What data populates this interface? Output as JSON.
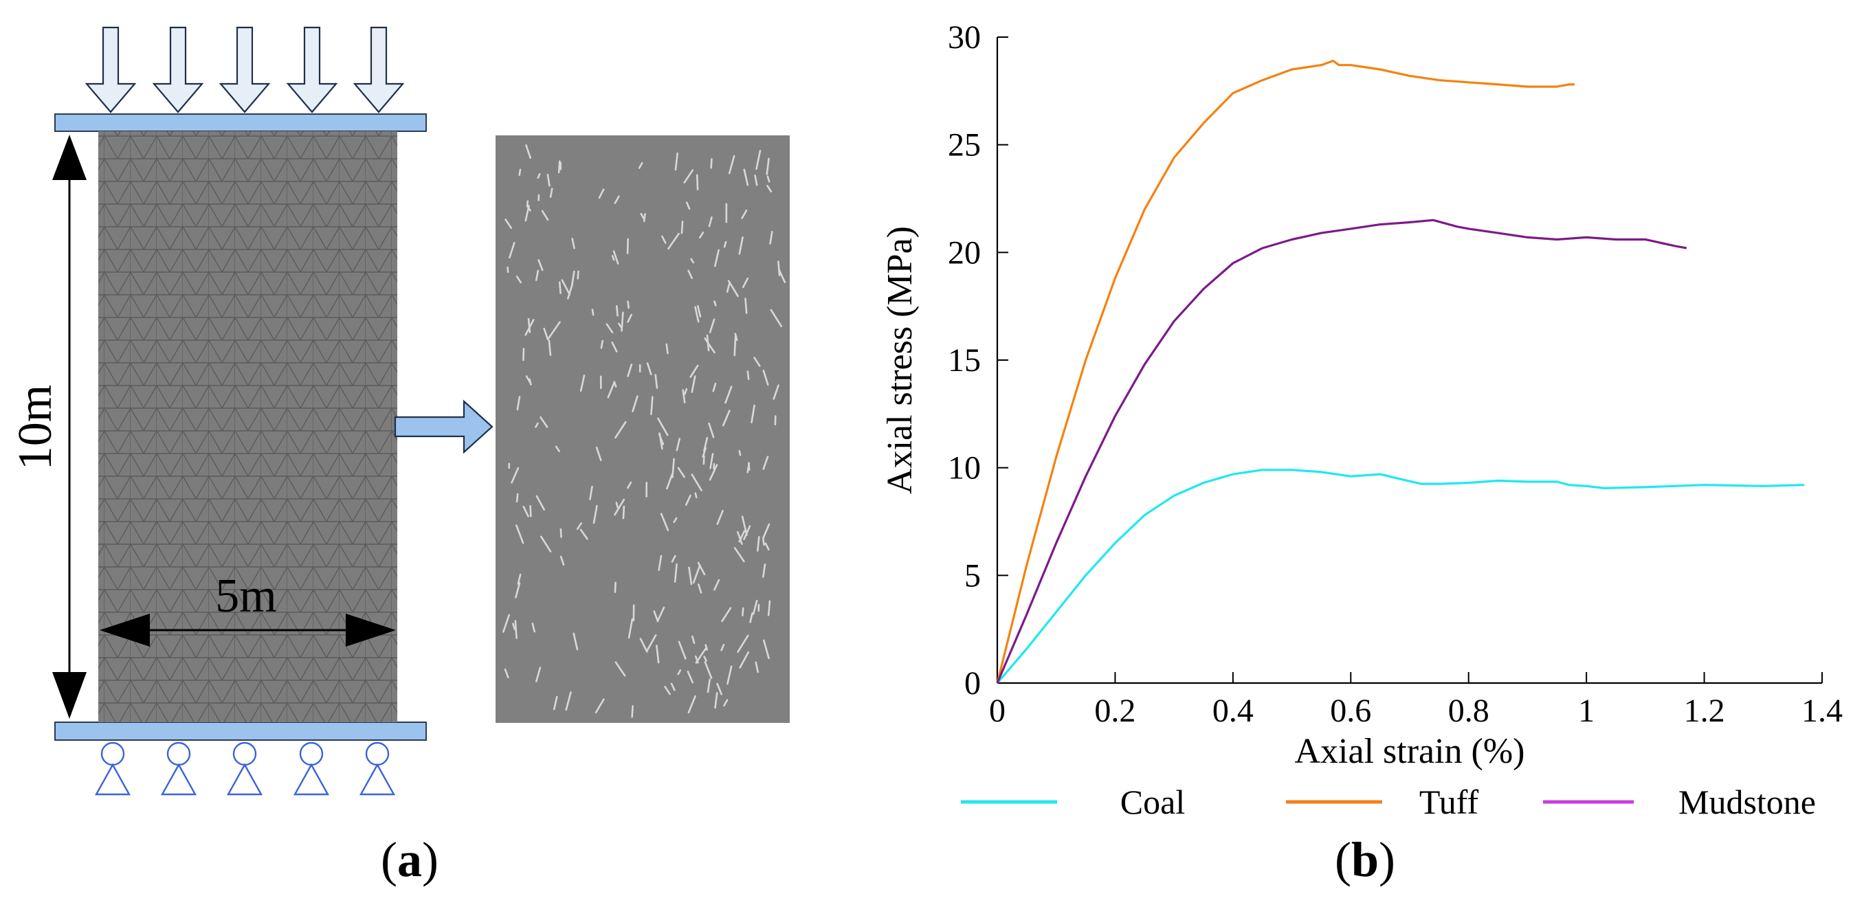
{
  "panel_a": {
    "label_prefix": "(",
    "label_letter": "a",
    "label_suffix": ")",
    "height_label": "10m",
    "width_label": "5m",
    "colors": {
      "plate": "#9cc3ee",
      "specimen": "#7a7a7a",
      "mesh": "#5a5a5a",
      "support": "#3b63d9",
      "arrow_fill": "#e6eef8"
    }
  },
  "panel_b": {
    "label_prefix": "(",
    "label_letter": "b",
    "label_suffix": ")"
  },
  "chart_data": {
    "type": "line",
    "title": "",
    "xlabel": "Axial strain (%)",
    "ylabel": "Axial stress (MPa)",
    "xlim": [
      0,
      1.4
    ],
    "ylim": [
      0,
      30
    ],
    "xticks": [
      0,
      0.2,
      0.4,
      0.6,
      0.8,
      1,
      1.2,
      1.4
    ],
    "xtick_labels": [
      "0",
      "0.2",
      "0.4",
      "0.6",
      "0.8",
      "1",
      "1.2",
      "1.4"
    ],
    "yticks": [
      0,
      5,
      10,
      15,
      20,
      25,
      30
    ],
    "ytick_labels": [
      "0",
      "5",
      "10",
      "15",
      "20",
      "25",
      "30"
    ],
    "grid": false,
    "legend_position": "bottom",
    "series": [
      {
        "name": "Coal",
        "color": "#1fe8f0",
        "legend_color": "#25e6ee",
        "x": [
          0,
          0.05,
          0.1,
          0.15,
          0.2,
          0.25,
          0.3,
          0.35,
          0.4,
          0.45,
          0.5,
          0.55,
          0.6,
          0.65,
          0.68,
          0.72,
          0.75,
          0.8,
          0.85,
          0.9,
          0.95,
          0.97,
          1.0,
          1.03,
          1.1,
          1.2,
          1.3,
          1.37
        ],
        "y": [
          0,
          1.6,
          3.3,
          5.0,
          6.5,
          7.8,
          8.7,
          9.3,
          9.7,
          9.9,
          9.9,
          9.8,
          9.6,
          9.7,
          9.5,
          9.25,
          9.25,
          9.3,
          9.4,
          9.35,
          9.35,
          9.2,
          9.15,
          9.05,
          9.1,
          9.2,
          9.15,
          9.2
        ]
      },
      {
        "name": "Tuff",
        "color": "#f5820f",
        "legend_color": "#f57f17",
        "x": [
          0,
          0.05,
          0.1,
          0.15,
          0.2,
          0.25,
          0.3,
          0.35,
          0.4,
          0.45,
          0.5,
          0.55,
          0.57,
          0.58,
          0.6,
          0.65,
          0.7,
          0.75,
          0.8,
          0.85,
          0.9,
          0.95,
          0.97,
          0.98
        ],
        "y": [
          0,
          5.5,
          10.5,
          15.0,
          18.8,
          22.0,
          24.4,
          26.0,
          27.4,
          28.0,
          28.5,
          28.7,
          28.9,
          28.7,
          28.7,
          28.5,
          28.2,
          28.0,
          27.9,
          27.8,
          27.7,
          27.7,
          27.8,
          27.8
        ]
      },
      {
        "name": "Mudstone",
        "color": "#7d1a8a",
        "legend_color": "#c83ce0",
        "x": [
          0,
          0.05,
          0.1,
          0.15,
          0.2,
          0.25,
          0.3,
          0.35,
          0.4,
          0.45,
          0.5,
          0.55,
          0.6,
          0.65,
          0.7,
          0.74,
          0.78,
          0.8,
          0.85,
          0.9,
          0.95,
          1.0,
          1.05,
          1.1,
          1.15,
          1.17
        ],
        "y": [
          0,
          3.2,
          6.5,
          9.6,
          12.4,
          14.8,
          16.8,
          18.3,
          19.5,
          20.2,
          20.6,
          20.9,
          21.1,
          21.3,
          21.4,
          21.5,
          21.2,
          21.1,
          20.9,
          20.7,
          20.6,
          20.7,
          20.6,
          20.6,
          20.3,
          20.2
        ]
      }
    ]
  }
}
